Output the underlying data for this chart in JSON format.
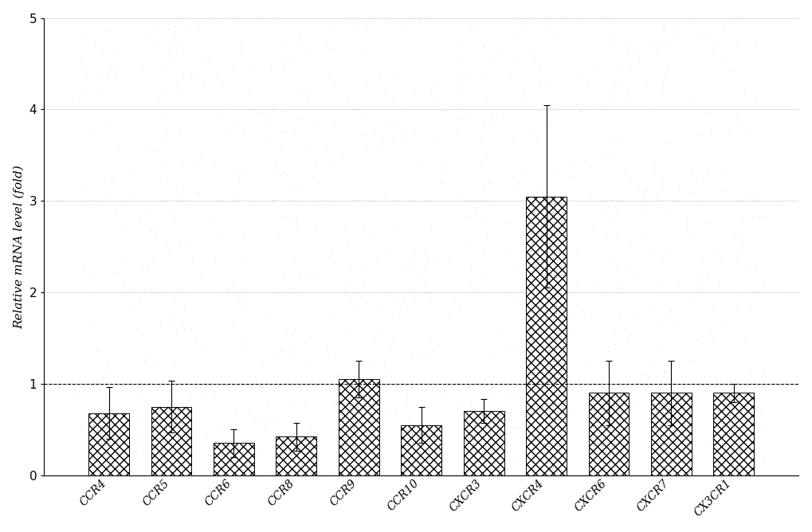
{
  "categories": [
    "CCR4",
    "CCR5",
    "CCR6",
    "CCR8",
    "CCR9",
    "CCR10",
    "CXCR3",
    "CXCR4",
    "CXCR6",
    "CXCR7",
    "CX3CR1"
  ],
  "values": [
    0.68,
    0.75,
    0.35,
    0.42,
    1.05,
    0.55,
    0.7,
    3.05,
    0.9,
    0.9,
    0.9
  ],
  "errors": [
    0.28,
    0.28,
    0.15,
    0.15,
    0.2,
    0.2,
    0.13,
    1.0,
    0.35,
    0.35,
    0.1
  ],
  "ylabel": "Relative mRNA level (fold)",
  "ylim": [
    0,
    5
  ],
  "yticks": [
    0,
    1,
    2,
    3,
    4,
    5
  ],
  "hline_y": 1.0,
  "background_color": "#ffffff",
  "title": ""
}
